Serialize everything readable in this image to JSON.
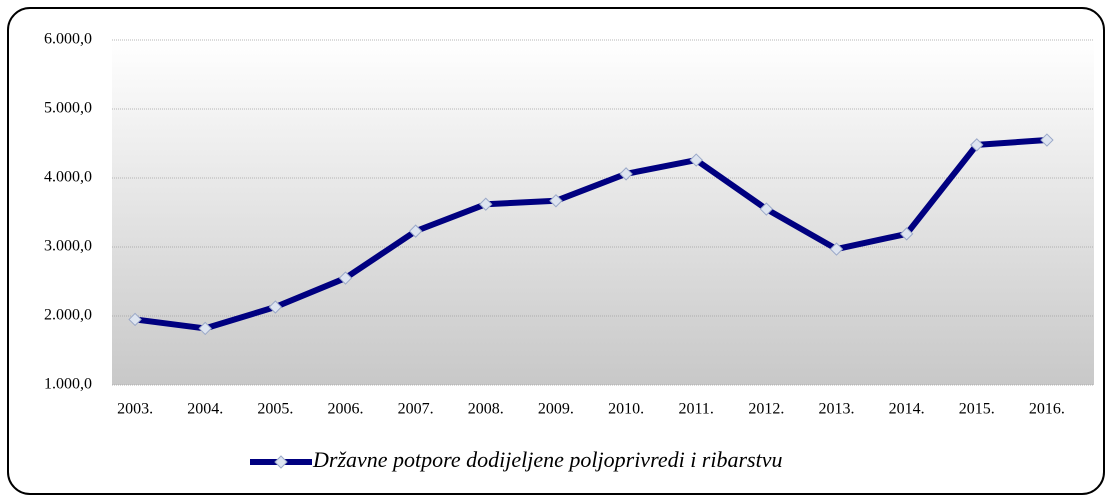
{
  "chart_data": {
    "type": "line",
    "categories": [
      "2003.",
      "2004.",
      "2005.",
      "2006.",
      "2007.",
      "2008.",
      "2009.",
      "2010.",
      "2011.",
      "2012.",
      "2013.",
      "2014.",
      "2015.",
      "2016."
    ],
    "series": [
      {
        "name": "Državne potpore dodijeljene poljoprivredi i ribarstvu",
        "color": "#000080",
        "values": [
          1950,
          1820,
          2130,
          2550,
          3230,
          3620,
          3670,
          4060,
          4260,
          3550,
          2970,
          3190,
          4480,
          4550
        ]
      }
    ],
    "ylim": [
      1000,
      6000
    ],
    "yticks": [
      {
        "value": 1000,
        "label": "1.000,0"
      },
      {
        "value": 2000,
        "label": "2.000,0"
      },
      {
        "value": 3000,
        "label": "3.000,0"
      },
      {
        "value": 4000,
        "label": "4.000,0"
      },
      {
        "value": 5000,
        "label": "5.000,0"
      },
      {
        "value": 6000,
        "label": "6.000,0"
      }
    ],
    "grid": true,
    "legend": "bottom"
  }
}
